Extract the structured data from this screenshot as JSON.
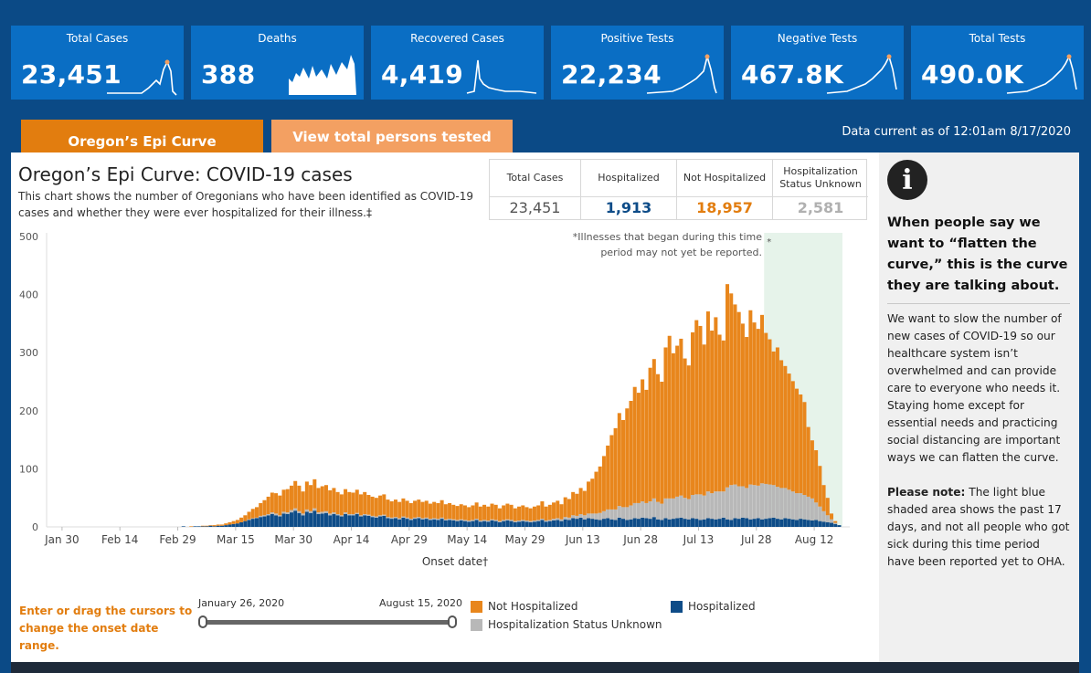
{
  "kpis": [
    {
      "label": "Total Cases",
      "value": "23,451"
    },
    {
      "label": "Deaths",
      "value": "388"
    },
    {
      "label": "Recovered Cases",
      "value": "4,419"
    },
    {
      "label": "Positive Tests",
      "value": "22,234"
    },
    {
      "label": "Negative Tests",
      "value": "467.8K"
    },
    {
      "label": "Total Tests",
      "value": "490.0K"
    }
  ],
  "tabs": {
    "epi_curve": "Oregon’s Epi Curve",
    "persons_tested": "View total persons tested"
  },
  "data_current": "Data current as of 12:01am 8/17/2020",
  "chart_header": {
    "title": "Oregon’s Epi Curve: COVID-19 cases",
    "subtitle": "This chart shows the number of Oregonians who have been identified as COVID-19 cases and whether they were ever hospitalized for their illness.‡"
  },
  "summary": {
    "total_label": "Total Cases",
    "total_value": "23,451",
    "hosp_label": "Hospitalized",
    "hosp_value": "1,913",
    "nothosp_label": "Not Hospitalized",
    "nothosp_value": "18,957",
    "unknown_label": "Hospitalization Status Unknown",
    "unknown_value": "2,581"
  },
  "colors": {
    "not_hospitalized": "#e8861c",
    "hospitalized": "#0e4c88",
    "unknown": "#b8b8b8",
    "shade": "#e6f3ea",
    "kpi_bg": "#0a6ec4"
  },
  "chart_data": {
    "type": "bar",
    "stacked": true,
    "xlabel": "Onset date†",
    "ylabel": "",
    "ylim": [
      0,
      500
    ],
    "yticks": [
      0,
      100,
      200,
      300,
      400,
      500
    ],
    "x_ticks": [
      "Jan 30",
      "Feb 14",
      "Feb 29",
      "Mar 15",
      "Mar 30",
      "Apr 14",
      "Apr 29",
      "May 14",
      "May 29",
      "Jun 13",
      "Jun 28",
      "Jul 13",
      "Jul 28",
      "Aug 12"
    ],
    "start_date": "2020-01-26",
    "end_date": "2020-08-15",
    "shaded_region": {
      "from": "2020-07-30",
      "to": "2020-08-15",
      "marker": "*"
    },
    "annotation": "*Illnesses that began during this time period may not yet be reported.",
    "series": [
      {
        "name": "Hospitalized",
        "values": [
          0,
          0,
          0,
          0,
          0,
          0,
          0,
          0,
          0,
          0,
          0,
          0,
          0,
          0,
          0,
          0,
          0,
          0,
          0,
          0,
          0,
          0,
          0,
          0,
          0,
          0,
          0,
          0,
          0,
          0,
          0,
          0,
          0,
          0,
          0,
          1,
          0,
          0,
          1,
          1,
          1,
          1,
          2,
          1,
          2,
          2,
          3,
          4,
          5,
          6,
          8,
          10,
          12,
          14,
          15,
          17,
          18,
          20,
          22,
          20,
          18,
          23,
          22,
          25,
          28,
          24,
          20,
          26,
          24,
          28,
          22,
          23,
          24,
          20,
          22,
          20,
          18,
          22,
          20,
          20,
          22,
          18,
          20,
          19,
          17,
          16,
          18,
          19,
          15,
          14,
          15,
          13,
          16,
          14,
          12,
          14,
          15,
          13,
          14,
          12,
          13,
          12,
          14,
          11,
          12,
          11,
          10,
          11,
          10,
          9,
          10,
          12,
          9,
          10,
          9,
          11,
          10,
          8,
          10,
          11,
          10,
          8,
          9,
          10,
          9,
          8,
          9,
          10,
          12,
          9,
          10,
          11,
          12,
          10,
          13,
          12,
          15,
          14,
          16,
          13,
          15,
          14,
          13,
          12,
          14,
          15,
          13,
          12,
          16,
          14,
          12,
          13,
          15,
          14,
          16,
          15,
          14,
          17,
          13,
          12,
          15,
          13,
          14,
          15,
          16,
          14,
          13,
          15,
          14,
          12,
          13,
          15,
          14,
          13,
          14,
          16,
          13,
          12,
          15,
          14,
          16,
          15,
          13,
          14,
          15,
          13,
          14,
          15,
          16,
          14,
          13,
          15,
          14,
          13,
          12,
          14,
          13,
          12,
          11,
          12,
          10,
          9,
          8,
          7,
          5,
          3
        ]
      },
      {
        "name": "Not Hospitalized",
        "values": [
          0,
          0,
          0,
          0,
          0,
          0,
          0,
          0,
          0,
          0,
          0,
          0,
          0,
          0,
          0,
          0,
          0,
          0,
          0,
          0,
          0,
          0,
          0,
          0,
          0,
          0,
          0,
          0,
          0,
          0,
          0,
          0,
          0,
          0,
          0,
          0,
          0,
          1,
          0,
          0,
          1,
          1,
          1,
          2,
          2,
          2,
          3,
          4,
          5,
          6,
          8,
          10,
          13,
          16,
          18,
          22,
          26,
          30,
          34,
          35,
          34,
          38,
          40,
          42,
          47,
          44,
          38,
          48,
          45,
          50,
          42,
          44,
          45,
          40,
          42,
          38,
          36,
          40,
          38,
          37,
          40,
          36,
          38,
          34,
          33,
          32,
          34,
          35,
          30,
          28,
          30,
          28,
          31,
          29,
          27,
          29,
          30,
          28,
          29,
          26,
          28,
          27,
          30,
          26,
          27,
          25,
          24,
          26,
          25,
          23,
          25,
          28,
          24,
          26,
          24,
          27,
          26,
          22,
          25,
          27,
          26,
          22,
          24,
          25,
          23,
          22,
          24,
          25,
          30,
          24,
          26,
          28,
          30,
          26,
          34,
          32,
          40,
          38,
          45,
          42,
          55,
          60,
          72,
          80,
          95,
          110,
          128,
          140,
          160,
          150,
          170,
          180,
          200,
          190,
          210,
          195,
          230,
          240,
          220,
          210,
          260,
          280,
          250,
          260,
          270,
          240,
          230,
          280,
          300,
          290,
          260,
          310,
          280,
          300,
          270,
          260,
          350,
          330,
          310,
          300,
          280,
          260,
          300,
          280,
          270,
          290,
          260,
          250,
          230,
          240,
          220,
          210,
          200,
          190,
          180,
          170,
          160,
          120,
          100,
          90,
          70,
          45,
          30,
          10,
          3
        ]
      },
      {
        "name": "Hospitalization Status Unknown",
        "values": [
          0,
          0,
          0,
          0,
          0,
          0,
          0,
          0,
          0,
          0,
          0,
          0,
          0,
          0,
          0,
          0,
          0,
          0,
          0,
          0,
          0,
          0,
          0,
          0,
          0,
          0,
          0,
          0,
          0,
          0,
          0,
          0,
          0,
          0,
          0,
          0,
          0,
          0,
          0,
          0,
          0,
          0,
          0,
          0,
          0,
          0,
          0,
          0,
          0,
          0,
          0,
          0,
          1,
          1,
          1,
          2,
          2,
          2,
          3,
          3,
          2,
          3,
          3,
          4,
          4,
          3,
          3,
          4,
          3,
          4,
          3,
          3,
          3,
          3,
          3,
          2,
          2,
          3,
          2,
          2,
          2,
          2,
          2,
          2,
          2,
          2,
          2,
          2,
          2,
          2,
          2,
          2,
          2,
          2,
          2,
          2,
          2,
          2,
          2,
          2,
          2,
          2,
          2,
          2,
          2,
          2,
          2,
          2,
          2,
          2,
          2,
          2,
          2,
          2,
          2,
          2,
          2,
          2,
          2,
          2,
          2,
          2,
          2,
          2,
          2,
          2,
          2,
          2,
          2,
          2,
          2,
          3,
          3,
          3,
          4,
          4,
          5,
          5,
          6,
          7,
          8,
          9,
          10,
          12,
          13,
          15,
          17,
          18,
          20,
          20,
          22,
          24,
          26,
          27,
          28,
          26,
          30,
          32,
          30,
          28,
          34,
          36,
          35,
          37,
          38,
          36,
          35,
          40,
          42,
          44,
          41,
          46,
          44,
          48,
          47,
          45,
          55,
          60,
          58,
          56,
          54,
          52,
          60,
          58,
          56,
          62,
          60,
          58,
          56,
          55,
          54,
          52,
          50,
          48,
          46,
          44,
          42,
          40,
          38,
          30,
          25,
          18,
          12,
          6,
          2
        ]
      }
    ]
  },
  "controls": {
    "hint": "Enter or drag the cursors to change the onset date range.",
    "range_start": "January 26, 2020",
    "range_end": "August 15, 2020"
  },
  "legend": {
    "not_hospitalized": "Not Hospitalized",
    "hospitalized": "Hospitalized",
    "unknown": "Hospitalization Status Unknown"
  },
  "sidebar": {
    "heading": "When people say we want to “flatten the curve,” this is the curve they are talking about.",
    "body": "We want to slow the number of new cases of COVID-19 so our healthcare system isn’t overwhelmed and can provide care to everyone who needs it. Staying home except for essential needs and practicing social distancing are important ways we can flatten the curve.",
    "note_label": "Please note:",
    "note_text": " The light blue shaded area shows the past 17 days, and not all people who got sick during this time period have been reported yet to OHA."
  }
}
